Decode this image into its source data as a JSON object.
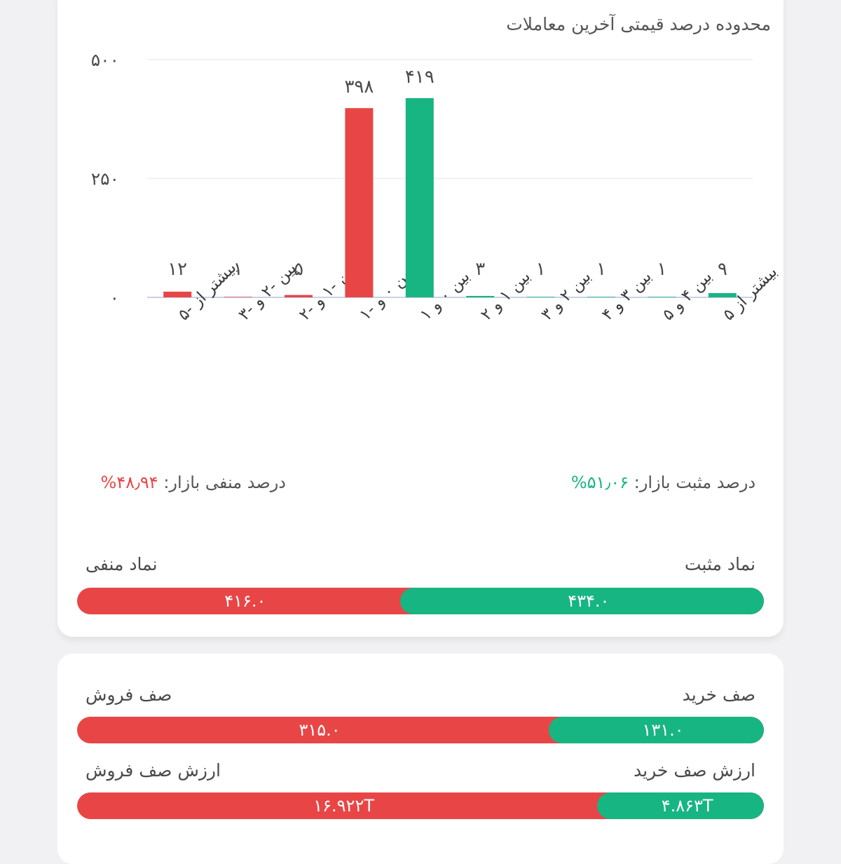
{
  "chart_data": {
    "type": "bar",
    "title": "محدوده درصد قیمتی آخرین معاملات",
    "categories": [
      "بیشتر از -۵",
      "بین -۲ و -۳",
      "بین -۱ و -۲",
      "بین ۰ و -۱",
      "بین ۰ و ۱",
      "بین ۱ و ۲",
      "بین ۲ و ۳",
      "بین ۳ و ۴",
      "بین ۴ و ۵",
      "بیشتر از ۵"
    ],
    "values": [
      12,
      1,
      5,
      398,
      419,
      3,
      1,
      1,
      1,
      9
    ],
    "value_labels": [
      "۱۲",
      "۱",
      "۵",
      "۳۹۸",
      "۴۱۹",
      "۳",
      "۱",
      "۱",
      "۱",
      "۹"
    ],
    "colors": [
      "#e84646",
      "#e84646",
      "#e84646",
      "#e84646",
      "#17b582",
      "#17b582",
      "#17b582",
      "#17b582",
      "#17b582",
      "#17b582"
    ],
    "yticks": [
      0,
      250,
      500
    ],
    "ytick_labels": [
      "۰",
      "۲۵۰",
      "۵۰۰"
    ],
    "ylim": [
      0,
      500
    ],
    "grid": true
  },
  "market": {
    "positive_label": "درصد مثبت بازار:",
    "positive_value": "۵۱٫۰۶%",
    "negative_label": "درصد منفی بازار:",
    "negative_value": "۴۸٫۹۴%"
  },
  "symbols": {
    "positive_label": "نماد مثبت",
    "negative_label": "نماد منفی",
    "positive_value": "۴۳۴.۰",
    "negative_value": "۴۱۶.۰",
    "positive_fraction": 0.5106
  },
  "queues": {
    "buy_label": "صف خرید",
    "sell_label": "صف فروش",
    "buy_value": "۱۳۱.۰",
    "sell_value": "۳۱۵.۰",
    "buy_fraction": 0.2937,
    "buy_value_label": "ارزش صف خرید",
    "sell_value_label": "ارزش صف فروش",
    "buy_amount": "۴.۸۶۳T",
    "sell_amount": "۱۶.۹۲۲T",
    "buy_amount_fraction": 0.2232
  },
  "colors": {
    "positive": "#17b582",
    "negative": "#e84646"
  }
}
